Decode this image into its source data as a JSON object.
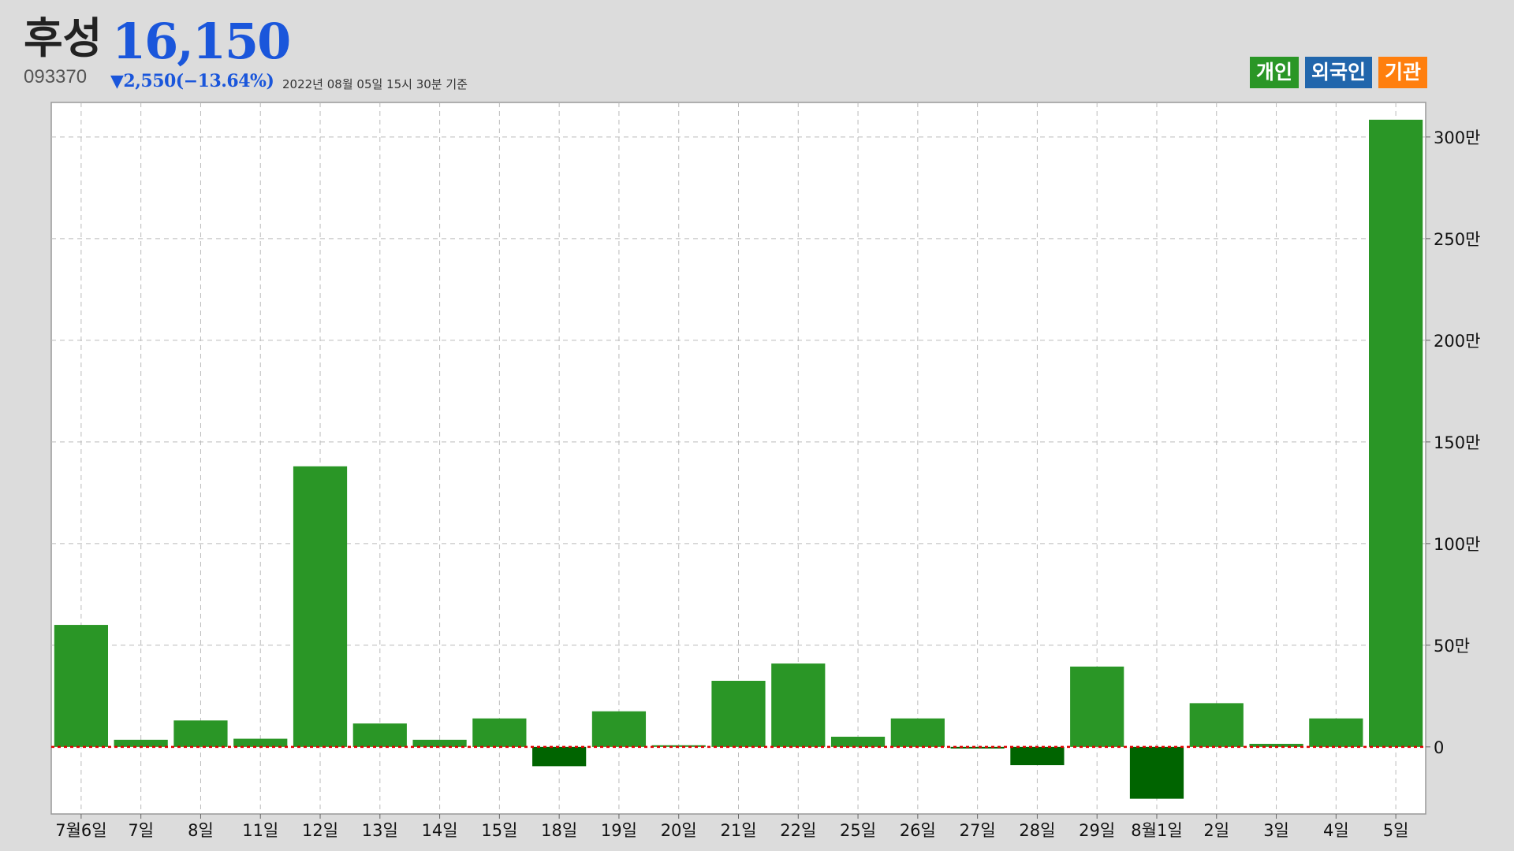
{
  "header": {
    "name": "후성",
    "price": "16,150",
    "code": "093370",
    "change": "▼2,550(−13.64%)",
    "as_of": "2022년 08월 05일 15시 30분 기준"
  },
  "legend": [
    {
      "label": "개인",
      "color": "#2a9626"
    },
    {
      "label": "외국인",
      "color": "#2166ac"
    },
    {
      "label": "기관",
      "color": "#ff7f0e"
    }
  ],
  "colors": {
    "positive": "#2a9626",
    "negative": "#006400",
    "zero_line": "#e00000",
    "grid": "#bbbbbb"
  },
  "chart_data": {
    "type": "bar",
    "categories": [
      "7월6일",
      "7일",
      "8일",
      "11일",
      "12일",
      "13일",
      "14일",
      "15일",
      "18일",
      "19일",
      "20일",
      "21일",
      "22일",
      "25일",
      "26일",
      "27일",
      "28일",
      "29일",
      "8월1일",
      "2일",
      "3일",
      "4일",
      "5일"
    ],
    "series": [
      {
        "name": "개인",
        "values": [
          600000,
          35000,
          130000,
          40000,
          1380000,
          115000,
          35000,
          140000,
          -95000,
          175000,
          8000,
          325000,
          410000,
          50000,
          140000,
          -8000,
          -90000,
          395000,
          -255000,
          215000,
          15000,
          140000,
          3085000
        ]
      }
    ],
    "y_ticks": [
      0,
      500000,
      1000000,
      1500000,
      2000000,
      2500000,
      3000000
    ],
    "y_tick_labels": [
      "0",
      "50만",
      "100만",
      "150만",
      "200만",
      "250만",
      "300만"
    ],
    "ylim": [
      -330000,
      3170000
    ],
    "grid": true,
    "y_axis_position": "right",
    "legend_position": "top-right"
  }
}
